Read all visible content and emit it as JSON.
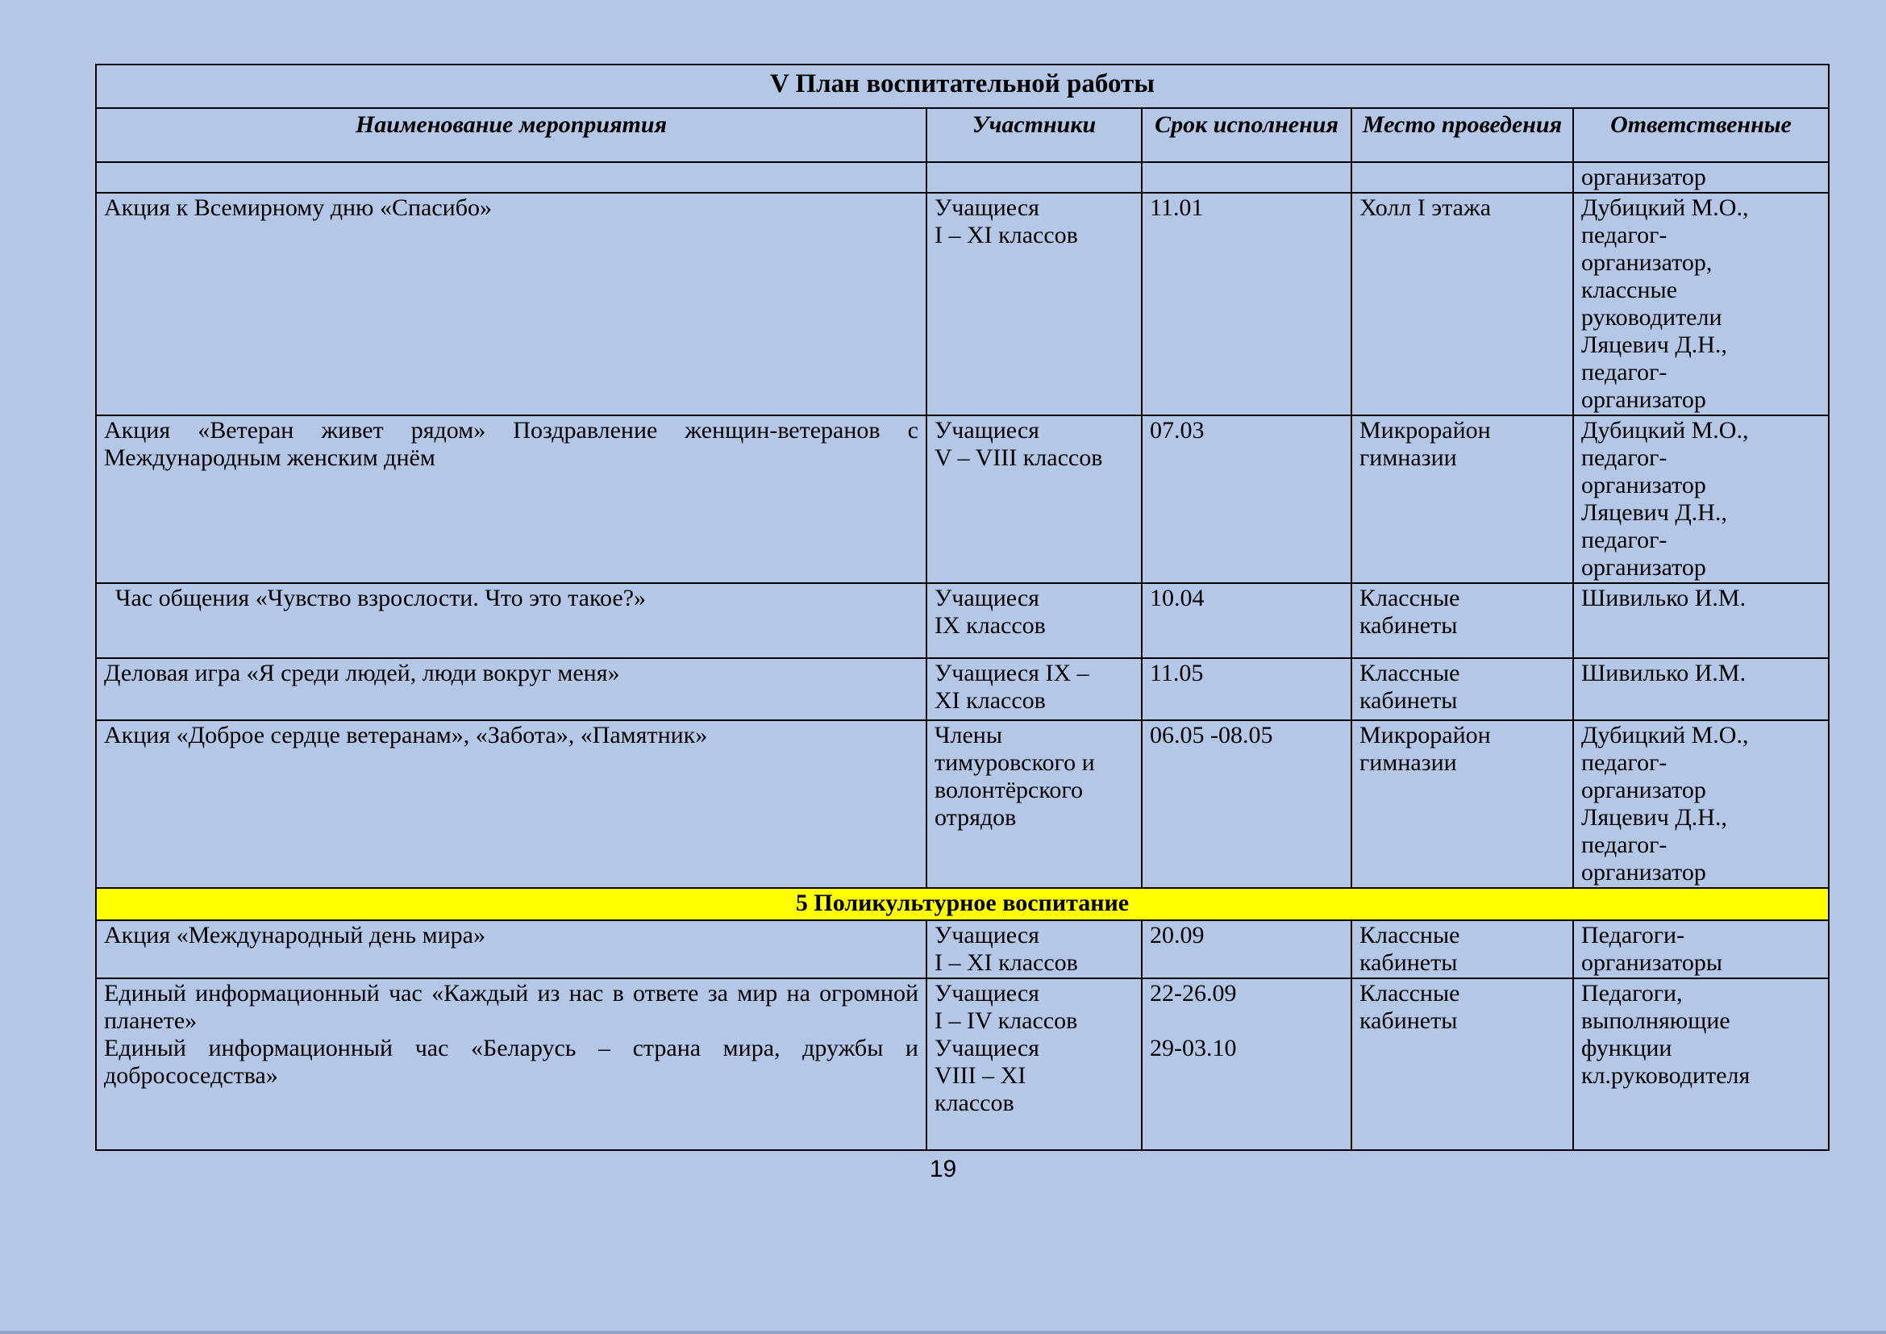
{
  "document": {
    "title": "V План воспитательной работы",
    "page_number": "19",
    "colors": {
      "page_background": "#b4c7e7",
      "section_highlight": "#ffff00",
      "border": "#000000",
      "text": "#000000"
    },
    "columns": [
      "Наименование мероприятия",
      "Участники",
      "Срок исполнения",
      "Место проведения",
      "Ответственные"
    ],
    "rows": [
      {
        "type": "data",
        "name": "",
        "participants": "",
        "term": "",
        "place": "",
        "responsible": "организатор"
      },
      {
        "type": "data",
        "name": "Акция к Всемирному дню «Спасибо»",
        "participants": "Учащиеся\nI – XI классов",
        "term": "11.01",
        "place": "Холл I этажа",
        "responsible": "Дубицкий М.О.,\nпедагог-\nорганизатор,\nклассные\nруководители\nЛяцевич Д.Н.,\nпедагог-\nорганизатор"
      },
      {
        "type": "data",
        "name": "Акция «Ветеран живет рядом» Поздравление женщин-ветеранов с Международным женским днём",
        "participants": "Учащиеся\nV – VIII классов",
        "term": "07.03",
        "place": "Микрорайон\nгимназии",
        "responsible": "Дубицкий М.О.,\nпедагог-\nорганизатор\nЛяцевич Д.Н.,\nпедагог-\nорганизатор"
      },
      {
        "type": "data",
        "name": "Час общения «Чувство взрослости. Что это такое?»",
        "participants": "Учащиеся\nIX  классов",
        "term": "10.04",
        "place": "Классные\nкабинеты",
        "responsible": "Шивилько И.М."
      },
      {
        "type": "data",
        "name": "Деловая игра «Я среди людей, люди вокруг меня»",
        "participants": "Учащиеся IX –\nXI классов",
        "term": "11.05",
        "place": "Классные\nкабинеты",
        "responsible": "Шивилько И.М."
      },
      {
        "type": "data",
        "name": "Акция  «Доброе сердце ветеранам», «Забота», «Памятник»",
        "participants": "Члены\nтимуровского и\nволонтёрского\nотрядов",
        "term": "06.05 -08.05",
        "place": "Микрорайон\nгимназии",
        "responsible": "Дубицкий М.О.,\nпедагог-\nорганизатор\nЛяцевич Д.Н.,\nпедагог-\nорганизатор"
      },
      {
        "type": "section",
        "label": "5 Поликультурное воспитание"
      },
      {
        "type": "data",
        "name": "Акция «Международный день мира»",
        "participants": "Учащиеся\nI – XI классов",
        "term": "20.09",
        "place": "Классные\nкабинеты",
        "responsible": "Педагоги-\nорганизаторы"
      },
      {
        "type": "data",
        "name": "Единый информационный час «Каждый из нас в ответе за мир на огромной планете»\nЕдиный информационный час «Беларусь – страна мира, дружбы и добрососедства»",
        "participants": "Учащиеся\nI – IV классов\nУчащиеся\nVIII – XI\nклассов",
        "term": "22-26.09\n\n29-03.10",
        "place": "Классные\nкабинеты",
        "responsible": "Педагоги,\nвыполняющие\nфункции\nкл.руководителя"
      }
    ]
  }
}
